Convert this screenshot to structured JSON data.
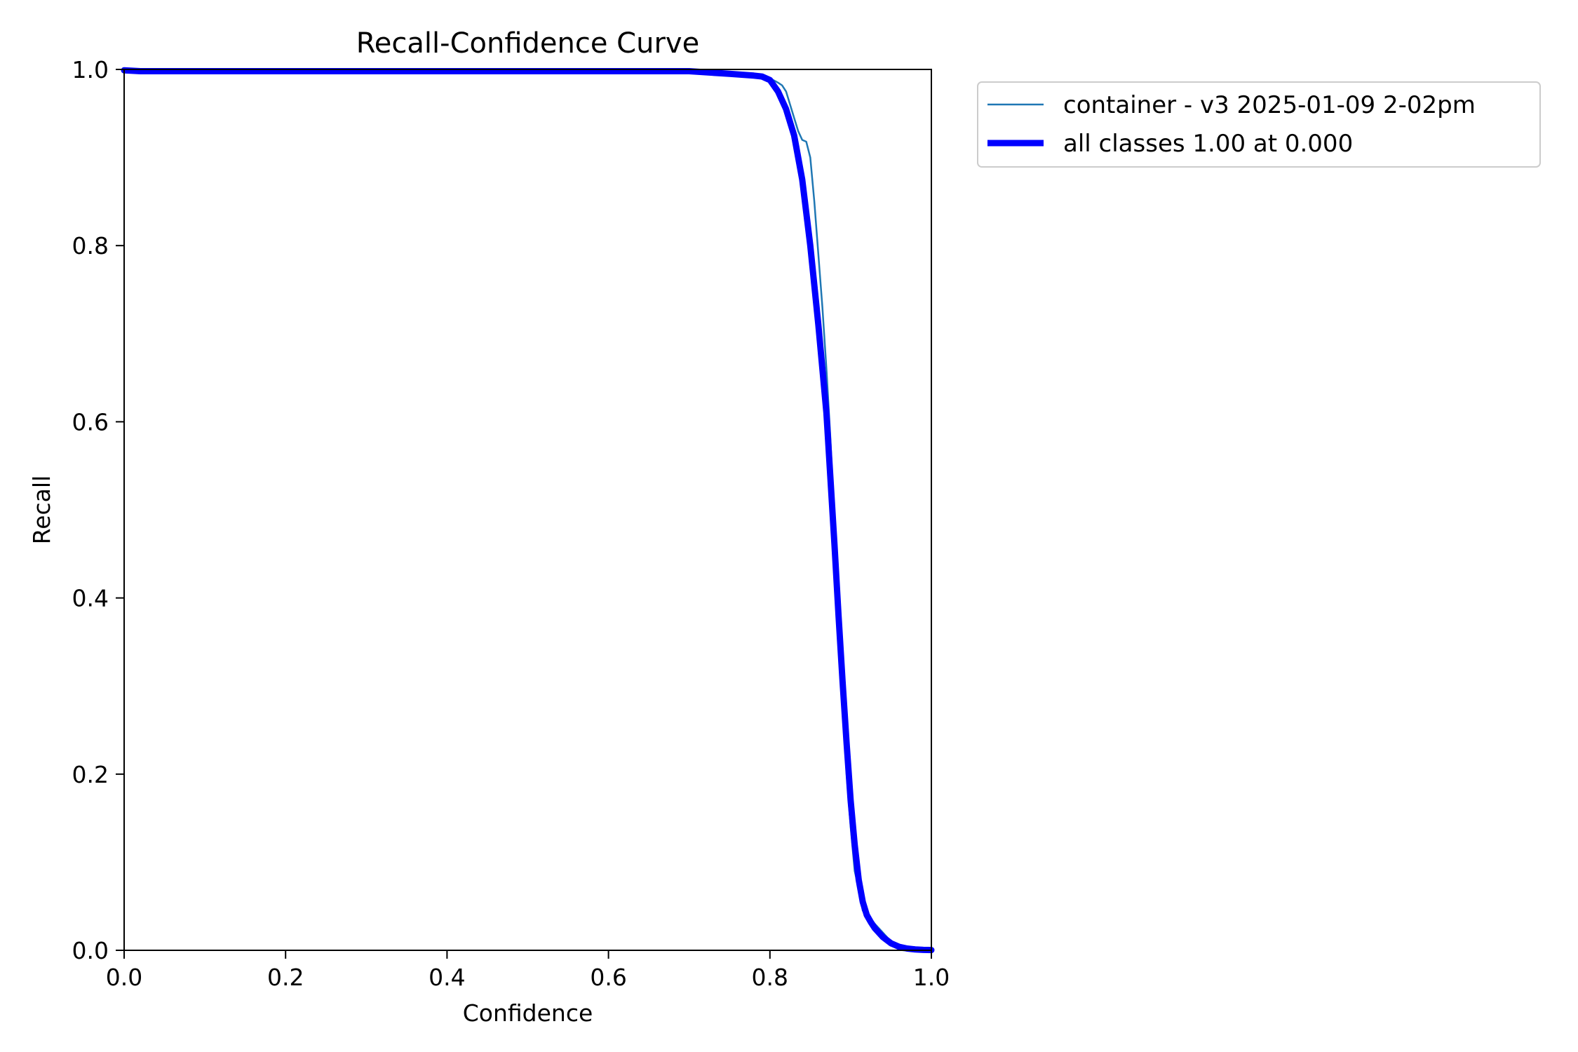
{
  "chart_data": {
    "type": "line",
    "title": "Recall-Confidence Curve",
    "xlabel": "Confidence",
    "ylabel": "Recall",
    "xlim": [
      0.0,
      1.0
    ],
    "ylim": [
      0.0,
      1.0
    ],
    "xticks": [
      "0.0",
      "0.2",
      "0.4",
      "0.6",
      "0.8",
      "1.0"
    ],
    "yticks": [
      "0.0",
      "0.2",
      "0.4",
      "0.6",
      "0.8",
      "1.0"
    ],
    "grid": false,
    "legend_position": "outside-top-right",
    "series": [
      {
        "name": "container - v3 2025-01-09 2-02pm",
        "color": "#1f77b4",
        "style": "thin",
        "x": [
          0.0,
          0.02,
          0.05,
          0.7,
          0.75,
          0.78,
          0.8,
          0.81,
          0.815,
          0.82,
          0.825,
          0.83,
          0.835,
          0.84,
          0.845,
          0.85,
          0.853,
          0.855,
          0.86,
          0.865,
          0.87,
          0.875,
          0.88,
          0.885,
          0.89,
          0.895,
          0.9,
          0.905,
          0.91,
          0.915,
          0.92,
          0.93,
          0.94,
          0.95,
          0.955,
          0.96,
          0.965,
          0.97,
          0.98,
          1.0
        ],
        "y": [
          0.999,
          0.998,
          0.998,
          0.998,
          0.995,
          0.993,
          0.99,
          0.985,
          0.982,
          0.975,
          0.96,
          0.945,
          0.93,
          0.92,
          0.918,
          0.9,
          0.87,
          0.85,
          0.79,
          0.73,
          0.66,
          0.58,
          0.48,
          0.38,
          0.28,
          0.2,
          0.14,
          0.09,
          0.07,
          0.045,
          0.04,
          0.03,
          0.02,
          0.01,
          0.005,
          0.002,
          0.0,
          0.0,
          0.0,
          0.0
        ]
      },
      {
        "name": "all classes 1.00 at 0.000",
        "color": "#0000ff",
        "style": "thick",
        "x": [
          0.0,
          0.02,
          0.05,
          0.7,
          0.75,
          0.78,
          0.79,
          0.8,
          0.81,
          0.82,
          0.83,
          0.84,
          0.85,
          0.86,
          0.87,
          0.875,
          0.88,
          0.885,
          0.89,
          0.895,
          0.9,
          0.905,
          0.91,
          0.915,
          0.92,
          0.925,
          0.93,
          0.94,
          0.95,
          0.96,
          0.97,
          0.98,
          0.99,
          1.0
        ],
        "y": [
          0.999,
          0.998,
          0.998,
          0.998,
          0.995,
          0.993,
          0.992,
          0.988,
          0.975,
          0.955,
          0.925,
          0.875,
          0.8,
          0.71,
          0.61,
          0.535,
          0.46,
          0.38,
          0.305,
          0.235,
          0.17,
          0.12,
          0.08,
          0.055,
          0.04,
          0.032,
          0.025,
          0.015,
          0.008,
          0.004,
          0.002,
          0.001,
          0.0005,
          0.0003
        ]
      }
    ]
  }
}
